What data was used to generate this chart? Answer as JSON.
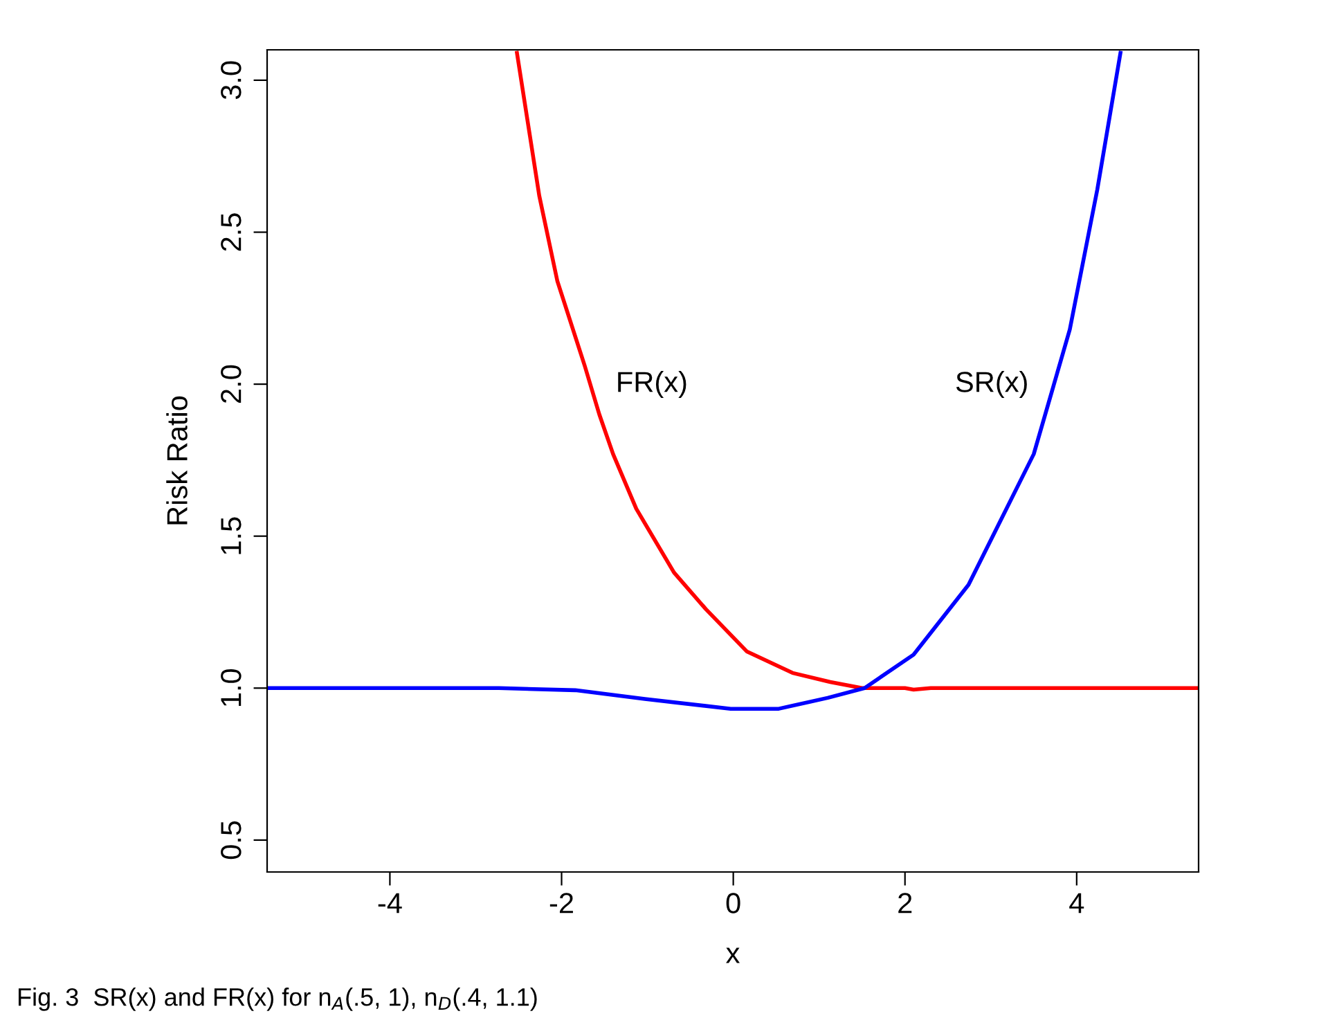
{
  "chart_data": {
    "type": "line",
    "xlabel": "x",
    "ylabel": "Risk Ratio",
    "xlim": [
      -5.43,
      5.42
    ],
    "ylim": [
      0.395,
      3.1
    ],
    "xticks": [
      -4,
      -2,
      0,
      2,
      4
    ],
    "yticks": [
      0.5,
      {
        "value": 1,
        "label": "1.0"
      },
      1.5,
      {
        "value": 2,
        "label": "2.0"
      },
      2.5,
      {
        "value": 3,
        "label": "3.0"
      }
    ],
    "grid": false,
    "legend": false,
    "series": [
      {
        "color": "#ff0000",
        "x": [
          -2.52,
          -2.26,
          -2.05,
          -1.73,
          -1.56,
          -1.4,
          -1.13,
          -0.69,
          -0.32,
          0.16,
          0.69,
          1.13,
          1.5,
          2.0,
          2.1,
          2.3,
          3.0,
          4.0,
          5.42
        ],
        "values": [
          3.09,
          2.62,
          2.34,
          2.06,
          1.9,
          1.77,
          1.59,
          1.38,
          1.26,
          1.12,
          1.05,
          1.02,
          1.0,
          1.0,
          0.995,
          1.0,
          1.0,
          1.0,
          1.0
        ]
      },
      {
        "color": "#0000ff",
        "x": [
          -5.43,
          -4.0,
          -2.73,
          -1.84,
          -1.03,
          -0.03,
          0.53,
          1.1,
          1.53,
          2.1,
          2.74,
          3.5,
          3.92,
          4.24,
          4.51
        ],
        "values": [
          1.0,
          1.0,
          1.0,
          0.993,
          0.964,
          0.932,
          0.932,
          0.968,
          1.0,
          1.11,
          1.34,
          1.77,
          2.18,
          2.64,
          3.09
        ]
      }
    ],
    "annotations": [
      "FR(x)",
      "SR(x)",
      "Fig. 3  SR(x) and FR(x) for n$_{A}$(.5, 1), n$_{D}$(.4, 1.1)"
    ]
  }
}
